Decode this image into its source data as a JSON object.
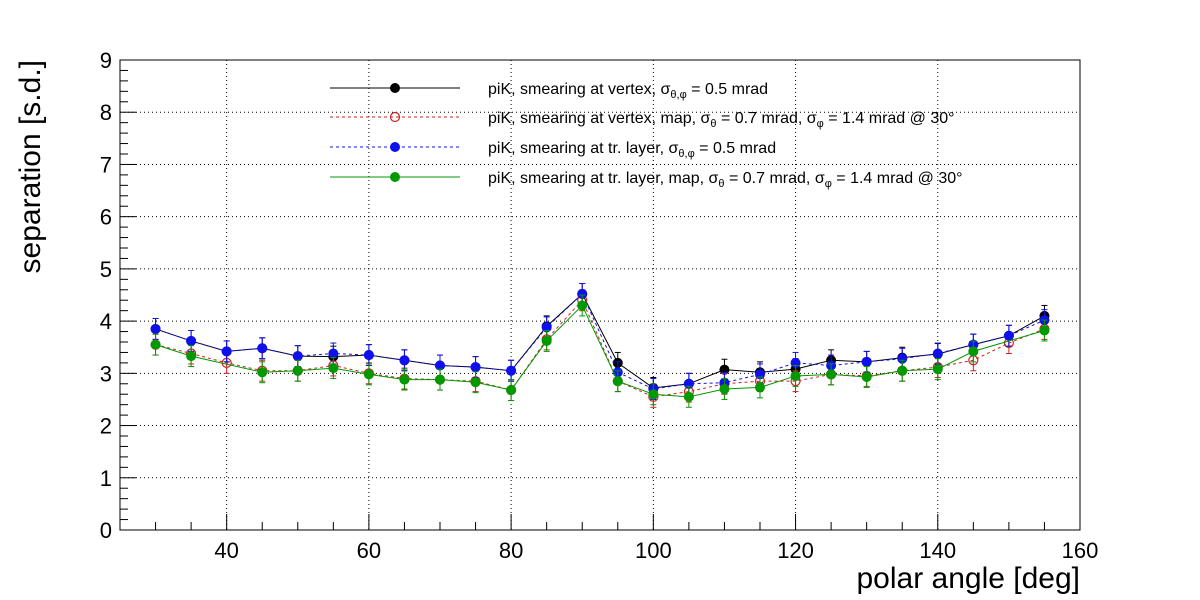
{
  "chart_data": {
    "type": "scatter",
    "title": "",
    "xlabel": "polar angle [deg]",
    "ylabel": "separation [s.d.]",
    "xlim": [
      25,
      160
    ],
    "ylim": [
      0,
      9
    ],
    "x_ticks": [
      40,
      60,
      80,
      100,
      120,
      140,
      160
    ],
    "y_ticks": [
      0,
      1,
      2,
      3,
      4,
      5,
      6,
      7,
      8,
      9
    ],
    "grid": true,
    "legend_position": "top",
    "x": [
      30,
      35,
      40,
      45,
      50,
      55,
      60,
      65,
      70,
      75,
      80,
      85,
      90,
      95,
      100,
      105,
      110,
      115,
      120,
      125,
      130,
      135,
      140,
      145,
      150,
      155
    ],
    "series": [
      {
        "name": "piK, smearing at vertex, σθ,φ = 0.5 mrad",
        "legend_segments": [
          {
            "t": "piK, smearing at vertex, σ"
          },
          {
            "t": "θ,φ",
            "sub": true
          },
          {
            "t": " = 0.5 mrad"
          }
        ],
        "color": "#000000",
        "line_style": "solid",
        "marker": "filled",
        "values": [
          3.85,
          3.62,
          3.42,
          3.48,
          3.33,
          3.32,
          3.35,
          3.25,
          3.15,
          3.12,
          3.05,
          3.9,
          4.52,
          3.2,
          2.72,
          2.8,
          3.07,
          3.02,
          3.08,
          3.25,
          3.22,
          3.3,
          3.37,
          3.55,
          3.72,
          4.1
        ],
        "errors": [
          0.2,
          0.2,
          0.2,
          0.2,
          0.2,
          0.2,
          0.2,
          0.2,
          0.2,
          0.2,
          0.2,
          0.2,
          0.2,
          0.2,
          0.2,
          0.2,
          0.2,
          0.2,
          0.2,
          0.2,
          0.2,
          0.2,
          0.2,
          0.2,
          0.2,
          0.2
        ]
      },
      {
        "name": "piK, smearing at vertex, map, σθ = 0.7 mrad,  σφ = 1.4 mrad @ 30°",
        "legend_segments": [
          {
            "t": "piK, smearing at vertex, map, σ"
          },
          {
            "t": "θ",
            "sub": true
          },
          {
            "t": " = 0.7 mrad,  σ"
          },
          {
            "t": "φ",
            "sub": true
          },
          {
            "t": " = 1.4 mrad @ 30°"
          }
        ],
        "color": "#cc2222",
        "line_style": "dashed",
        "marker": "open",
        "values": [
          3.55,
          3.38,
          3.2,
          3.05,
          3.05,
          3.15,
          3.0,
          2.9,
          2.88,
          2.85,
          2.68,
          3.65,
          4.4,
          2.85,
          2.55,
          2.65,
          2.8,
          2.85,
          2.85,
          2.98,
          2.95,
          3.05,
          3.12,
          3.25,
          3.58,
          3.85
        ],
        "errors": [
          0.2,
          0.2,
          0.2,
          0.2,
          0.2,
          0.2,
          0.2,
          0.2,
          0.2,
          0.2,
          0.2,
          0.2,
          0.2,
          0.2,
          0.2,
          0.2,
          0.2,
          0.2,
          0.2,
          0.2,
          0.2,
          0.2,
          0.2,
          0.2,
          0.2,
          0.2
        ]
      },
      {
        "name": "piK, smearing at tr. layer, σθ,φ = 0.5 mrad",
        "legend_segments": [
          {
            "t": "piK, smearing at tr. layer, σ"
          },
          {
            "t": "θ,φ",
            "sub": true
          },
          {
            "t": " = 0.5 mrad"
          }
        ],
        "color": "#1010ee",
        "line_style": "dashed",
        "marker": "filled",
        "values": [
          3.85,
          3.62,
          3.42,
          3.48,
          3.33,
          3.38,
          3.35,
          3.25,
          3.15,
          3.12,
          3.05,
          3.88,
          4.52,
          3.02,
          2.7,
          2.8,
          2.82,
          2.98,
          3.2,
          3.15,
          3.22,
          3.28,
          3.38,
          3.55,
          3.72,
          4.02
        ],
        "errors": [
          0.2,
          0.2,
          0.2,
          0.2,
          0.2,
          0.2,
          0.2,
          0.2,
          0.2,
          0.2,
          0.2,
          0.2,
          0.2,
          0.2,
          0.2,
          0.2,
          0.2,
          0.2,
          0.2,
          0.2,
          0.2,
          0.2,
          0.2,
          0.2,
          0.2,
          0.2
        ]
      },
      {
        "name": "piK, smearing at tr. layer, map, σθ = 0.7 mrad,  σφ = 1.4 mrad @ 30°",
        "legend_segments": [
          {
            "t": "piK, smearing at tr. layer, map, σ"
          },
          {
            "t": "θ",
            "sub": true
          },
          {
            "t": " = 0.7 mrad,  σ"
          },
          {
            "t": "φ",
            "sub": true
          },
          {
            "t": " = 1.4 mrad @ 30°"
          }
        ],
        "color": "#009900",
        "line_style": "solid",
        "marker": "filled",
        "values": [
          3.55,
          3.33,
          null,
          3.02,
          3.05,
          3.1,
          2.98,
          2.88,
          2.88,
          2.83,
          2.68,
          3.62,
          4.3,
          2.85,
          2.6,
          2.55,
          2.7,
          2.73,
          2.95,
          2.98,
          2.93,
          3.05,
          3.08,
          3.42,
          null,
          3.82
        ],
        "errors": [
          0.2,
          0.2,
          0.2,
          0.2,
          0.2,
          0.2,
          0.2,
          0.2,
          0.2,
          0.2,
          0.2,
          0.2,
          0.2,
          0.2,
          0.2,
          0.2,
          0.2,
          0.2,
          0.2,
          0.2,
          0.2,
          0.2,
          0.2,
          0.2,
          0.2,
          0.2
        ]
      }
    ]
  }
}
